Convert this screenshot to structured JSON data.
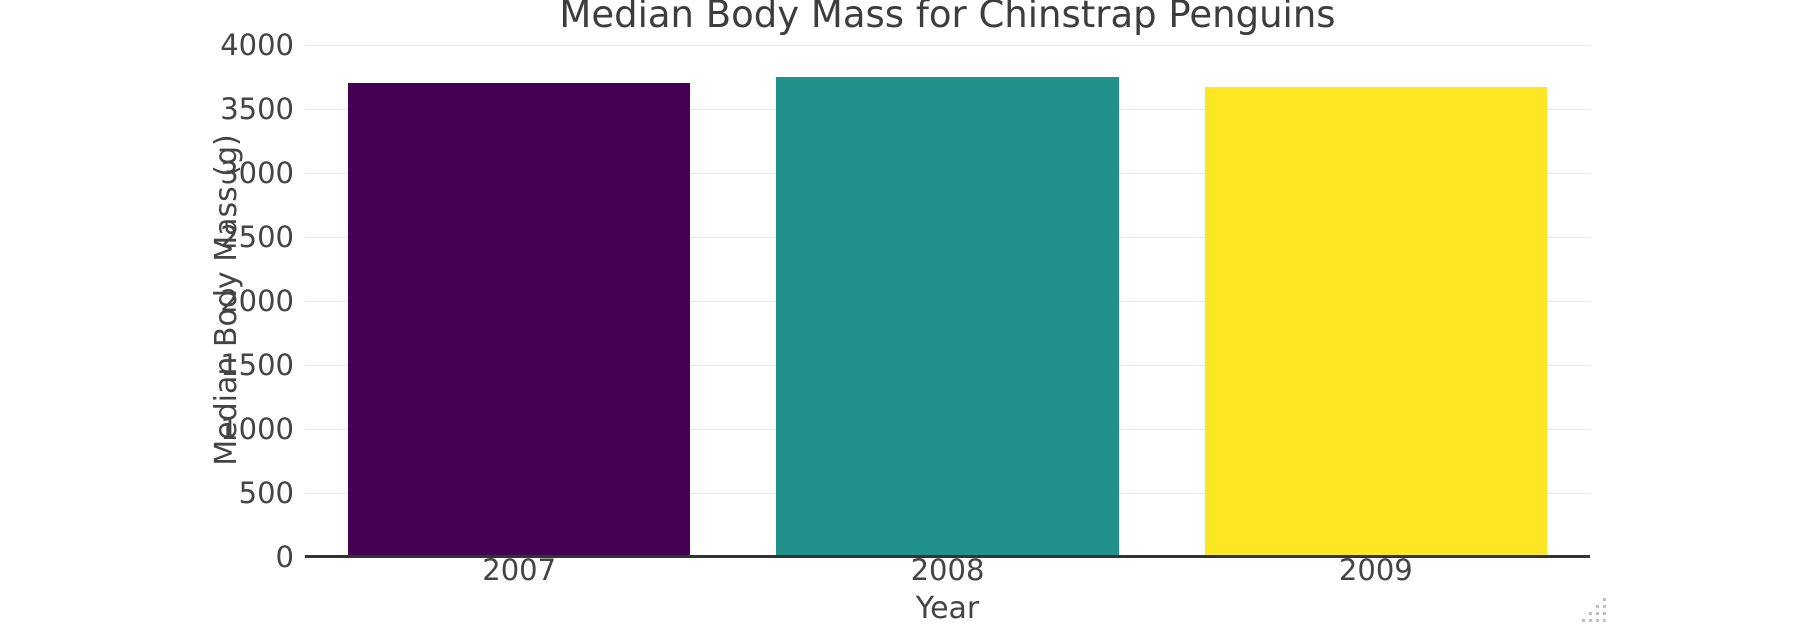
{
  "chart_data": {
    "type": "bar",
    "title": "Median Body Mass for Chinstrap Penguins",
    "xlabel": "Year",
    "ylabel": "Median Body Mass (g)",
    "categories": [
      "2007",
      "2008",
      "2009"
    ],
    "values": [
      3700,
      3750,
      3675
    ],
    "ylim": [
      0,
      4000
    ],
    "ytick_step": 500,
    "yticks": [
      0,
      500,
      1000,
      1500,
      2000,
      2500,
      3000,
      3500,
      4000
    ],
    "bar_colors": [
      "#440154",
      "#21918c",
      "#fde725"
    ],
    "grid": true,
    "legend_position": "none"
  },
  "colors": {
    "grid": "#e8e8e8",
    "axis_line": "#333333",
    "text": "#444444",
    "background": "#ffffff"
  },
  "icons": {
    "resize_grip": "resize-grip"
  }
}
